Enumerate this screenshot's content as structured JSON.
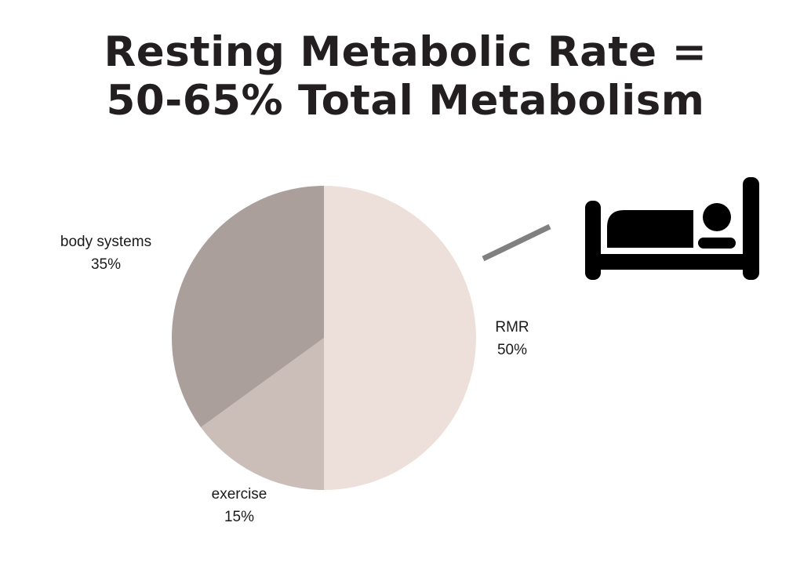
{
  "title": {
    "line1": "Resting Metabolic Rate =",
    "line2": "50-65% Total Metabolism"
  },
  "icon": "bed-sleeping-person-icon",
  "colors": {
    "title": "#231f20",
    "connector": "#808080",
    "icon": "#000000"
  },
  "chart_data": {
    "type": "pie",
    "title": "Resting Metabolic Rate = 50-65% Total Metabolism",
    "start_angle": "12 o'clock",
    "direction": "clockwise",
    "slices": [
      {
        "label": "RMR",
        "value": 50,
        "value_label": "50%",
        "color": "#ede0da"
      },
      {
        "label": "exercise",
        "value": 15,
        "value_label": "15%",
        "color": "#cbbdb8"
      },
      {
        "label": "body systems",
        "value": 35,
        "value_label": "35%",
        "color": "#ab9f9c"
      }
    ]
  }
}
